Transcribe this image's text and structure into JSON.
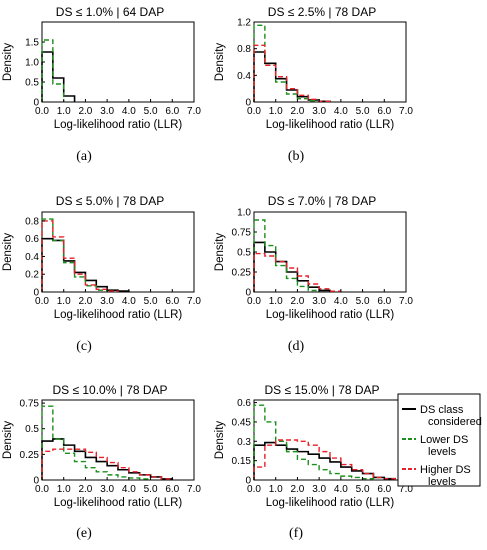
{
  "colors": {
    "considered": "#000000",
    "lower": "#1a8f1a",
    "higher": "#e8202a"
  },
  "legend": {
    "entries": [
      {
        "key": "considered",
        "lines": [
          "DS class",
          "considered"
        ],
        "dash": "solid"
      },
      {
        "key": "lower",
        "lines": [
          "Lower DS",
          "levels"
        ],
        "dash": "dashed"
      },
      {
        "key": "higher",
        "lines": [
          "Higher DS",
          "levels"
        ],
        "dash": "dashed"
      }
    ]
  },
  "chart_data": [
    {
      "type": "area",
      "title": "DS ≤ 1.0% | 64 DAP",
      "caption": "(a)",
      "xlabel": "Log-likelihood ratio (LLR)",
      "ylabel": "Density",
      "xlim": [
        0,
        7
      ],
      "ylim": [
        0,
        2.0
      ],
      "xticks": [
        "0.0",
        "1.0",
        "2.0",
        "3.0",
        "4.0",
        "5.0",
        "6.0",
        "7.0"
      ],
      "yticks": [
        {
          "v": 0,
          "label": "0"
        },
        {
          "v": 0.5,
          "label": "0.5"
        },
        {
          "v": 1.0,
          "label": "1.0"
        },
        {
          "v": 1.5,
          "label": "1.5"
        }
      ],
      "bin_edges": [
        0,
        0.5,
        1.0,
        1.5
      ],
      "series": [
        {
          "key": "considered",
          "values": [
            1.25,
            0.6,
            0.15
          ]
        },
        {
          "key": "lower",
          "values": [
            1.55,
            0.45
          ]
        }
      ]
    },
    {
      "type": "area",
      "title": "DS ≤ 2.5% | 78 DAP",
      "caption": "(b)",
      "xlabel": "Log-likelihood ratio (LLR)",
      "ylabel": "Density",
      "xlim": [
        0,
        7
      ],
      "ylim": [
        0,
        1.2
      ],
      "xticks": [
        "0.0",
        "1.0",
        "2.0",
        "3.0",
        "4.0",
        "5.0",
        "6.0",
        "7.0"
      ],
      "yticks": [
        {
          "v": 0,
          "label": "0"
        },
        {
          "v": 0.4,
          "label": "0.4"
        },
        {
          "v": 0.8,
          "label": "0.8"
        },
        {
          "v": 1.2,
          "label": "1.2"
        }
      ],
      "bin_edges": [
        0,
        0.5,
        1.0,
        1.5,
        2.0,
        2.5,
        3.0,
        3.5
      ],
      "series": [
        {
          "key": "considered",
          "values": [
            0.75,
            0.58,
            0.35,
            0.18,
            0.08,
            0.03,
            0.01
          ]
        },
        {
          "key": "lower",
          "values": [
            1.15,
            0.55,
            0.3,
            0.12,
            0.05,
            0.02
          ]
        },
        {
          "key": "higher",
          "values": [
            0.85,
            0.55,
            0.38,
            0.2,
            0.1,
            0.04,
            0.01
          ]
        }
      ]
    },
    {
      "type": "area",
      "title": "DS ≤ 5.0% | 78 DAP",
      "caption": "(c)",
      "xlabel": "Log-likelihood ratio (LLR)",
      "ylabel": "Density",
      "xlim": [
        0,
        7
      ],
      "ylim": [
        0,
        0.9
      ],
      "xticks": [
        "0.0",
        "1.0",
        "2.0",
        "3.0",
        "4.0",
        "5.0",
        "6.0",
        "7.0"
      ],
      "yticks": [
        {
          "v": 0,
          "label": "0"
        },
        {
          "v": 0.2,
          "label": "0.2"
        },
        {
          "v": 0.4,
          "label": "0.4"
        },
        {
          "v": 0.6,
          "label": "0.6"
        },
        {
          "v": 0.8,
          "label": "0.8"
        }
      ],
      "bin_edges": [
        0,
        0.5,
        1.0,
        1.5,
        2.0,
        2.5,
        3.0,
        3.5,
        4.0
      ],
      "series": [
        {
          "key": "considered",
          "values": [
            0.6,
            0.58,
            0.35,
            0.22,
            0.13,
            0.06,
            0.02,
            0.01
          ]
        },
        {
          "key": "lower",
          "values": [
            0.82,
            0.58,
            0.33,
            0.17,
            0.07,
            0.02
          ]
        },
        {
          "key": "higher",
          "values": [
            0.8,
            0.62,
            0.38,
            0.2,
            0.08,
            0.03,
            0.01
          ]
        }
      ]
    },
    {
      "type": "area",
      "title": "DS ≤ 7.0% | 78 DAP",
      "caption": "(d)",
      "xlabel": "Log-likelihood ratio (LLR)",
      "ylabel": "Density",
      "xlim": [
        0,
        7
      ],
      "ylim": [
        0,
        1.0
      ],
      "xticks": [
        "0.0",
        "1.0",
        "2.0",
        "3.0",
        "4.0",
        "5.0",
        "6.0",
        "7.0"
      ],
      "yticks": [
        {
          "v": 0,
          "label": "0"
        },
        {
          "v": 0.25,
          "label": "0.25"
        },
        {
          "v": 0.5,
          "label": "0.5"
        },
        {
          "v": 0.75,
          "label": "0.75"
        },
        {
          "v": 1.0,
          "label": "1.0"
        }
      ],
      "bin_edges": [
        0,
        0.5,
        1.0,
        1.5,
        2.0,
        2.5,
        3.0,
        3.5,
        4.0
      ],
      "series": [
        {
          "key": "considered",
          "values": [
            0.62,
            0.5,
            0.38,
            0.25,
            0.14,
            0.06,
            0.02
          ]
        },
        {
          "key": "lower",
          "values": [
            0.9,
            0.58,
            0.33,
            0.17,
            0.07,
            0.02
          ]
        },
        {
          "key": "higher",
          "values": [
            0.48,
            0.45,
            0.38,
            0.3,
            0.2,
            0.1,
            0.04,
            0.01
          ]
        }
      ]
    },
    {
      "type": "area",
      "title": "DS ≤ 10.0% | 78 DAP",
      "caption": "(e)",
      "xlabel": "Log-likelihood ratio (LLR)",
      "ylabel": "Density",
      "xlim": [
        0,
        7
      ],
      "ylim": [
        0,
        0.78
      ],
      "xticks": [
        "0.0",
        "1.0",
        "2.0",
        "3.0",
        "4.0",
        "5.0",
        "6.0",
        "7.0"
      ],
      "yticks": [
        {
          "v": 0,
          "label": "0"
        },
        {
          "v": 0.25,
          "label": "0.25"
        },
        {
          "v": 0.5,
          "label": "0.5"
        },
        {
          "v": 0.75,
          "label": "0.75"
        }
      ],
      "bin_edges": [
        0,
        0.5,
        1.0,
        1.5,
        2.0,
        2.5,
        3.0,
        3.5,
        4.0,
        4.5,
        5.0,
        5.5,
        6.0
      ],
      "series": [
        {
          "key": "considered",
          "values": [
            0.38,
            0.4,
            0.34,
            0.28,
            0.22,
            0.18,
            0.14,
            0.1,
            0.07,
            0.05,
            0.03,
            0.01
          ]
        },
        {
          "key": "lower",
          "values": [
            0.72,
            0.4,
            0.26,
            0.18,
            0.12,
            0.08,
            0.05,
            0.03,
            0.02,
            0.01
          ]
        },
        {
          "key": "higher",
          "values": [
            0.28,
            0.3,
            0.3,
            0.3,
            0.27,
            0.22,
            0.17,
            0.12,
            0.08,
            0.05,
            0.03,
            0.01
          ]
        }
      ]
    },
    {
      "type": "area",
      "title": "DS ≤ 15.0% | 78 DAP",
      "caption": "(f)",
      "xlabel": "Log-likelihood ratio (LLR)",
      "ylabel": "Density",
      "xlim": [
        0,
        7
      ],
      "ylim": [
        0,
        0.62
      ],
      "xticks": [
        "0.0",
        "1.0",
        "2.0",
        "3.0",
        "4.0",
        "5.0",
        "6.0",
        "7.0"
      ],
      "yticks": [
        {
          "v": 0,
          "label": "0"
        },
        {
          "v": 0.15,
          "label": "0.15"
        },
        {
          "v": 0.3,
          "label": "0.3"
        },
        {
          "v": 0.45,
          "label": "0.45"
        },
        {
          "v": 0.6,
          "label": "0.6"
        }
      ],
      "bin_edges": [
        0,
        0.5,
        1.0,
        1.5,
        2.0,
        2.5,
        3.0,
        3.5,
        4.0,
        4.5,
        5.0,
        5.5,
        6.0,
        6.5
      ],
      "series": [
        {
          "key": "considered",
          "values": [
            0.27,
            0.29,
            0.27,
            0.24,
            0.22,
            0.2,
            0.17,
            0.14,
            0.1,
            0.07,
            0.05,
            0.02,
            0.01
          ]
        },
        {
          "key": "lower",
          "values": [
            0.58,
            0.45,
            0.3,
            0.22,
            0.16,
            0.12,
            0.08,
            0.05,
            0.03,
            0.02,
            0.01
          ]
        },
        {
          "key": "higher",
          "values": [
            0.1,
            0.27,
            0.31,
            0.31,
            0.3,
            0.27,
            0.22,
            0.17,
            0.12,
            0.08,
            0.05,
            0.02,
            0.01
          ]
        }
      ]
    }
  ]
}
